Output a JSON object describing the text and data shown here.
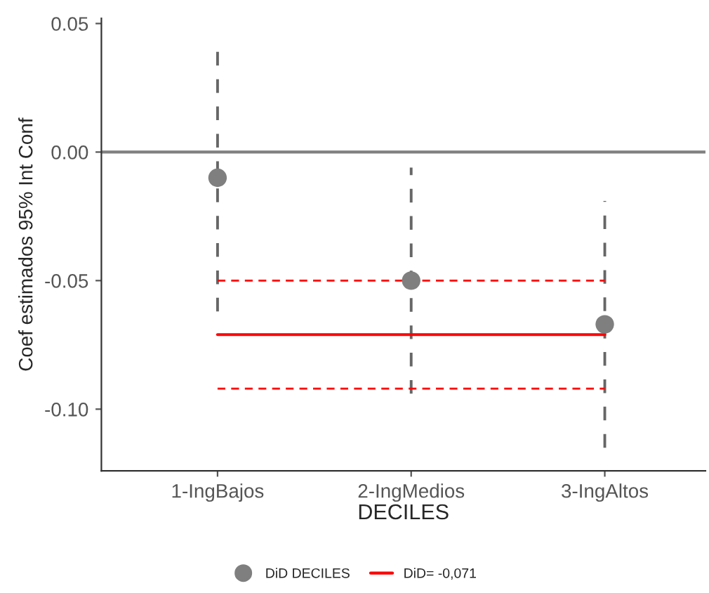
{
  "chart_data": {
    "type": "scatter",
    "xlabel": "DECILES",
    "ylabel": "Coef estimados 95% Int Conf",
    "categories": [
      "1-IngBajos",
      "2-IngMedios",
      "3-IngAltos"
    ],
    "series": [
      {
        "name": "DiD DECILES",
        "color": "#7f7f7f",
        "marker": "circle",
        "values": [
          -0.01,
          -0.05,
          -0.067
        ],
        "errors": [
          0.052,
          0.044,
          0.048
        ]
      },
      {
        "name": "DiD= -0,071",
        "type": "line",
        "color": "#ff0000",
        "marker": "none",
        "line_style": "solid",
        "values": [
          -0.071,
          -0.071,
          -0.071
        ]
      },
      {
        "type": "line",
        "color": "#ff0000",
        "marker": "none",
        "line_style": "dashed",
        "values": [
          -0.05,
          -0.05,
          -0.05
        ]
      },
      {
        "type": "line",
        "color": "#ff0000",
        "marker": "none",
        "line_style": "dashed",
        "values": [
          -0.092,
          -0.092,
          -0.092
        ]
      }
    ],
    "ylim": [
      -0.124,
      0.052
    ],
    "yticks": [
      {
        "value": -0.1,
        "label": "-0.10"
      },
      {
        "value": -0.05,
        "label": "-0.05"
      },
      {
        "value": 0,
        "label": "0.00"
      },
      {
        "value": 0.05,
        "label": "0.05"
      }
    ],
    "ref_lines": [
      {
        "axis": "y",
        "value": 0,
        "label": null,
        "color": "#808080",
        "line_style": "solid"
      }
    ],
    "grid": false,
    "legend": "bottom"
  }
}
